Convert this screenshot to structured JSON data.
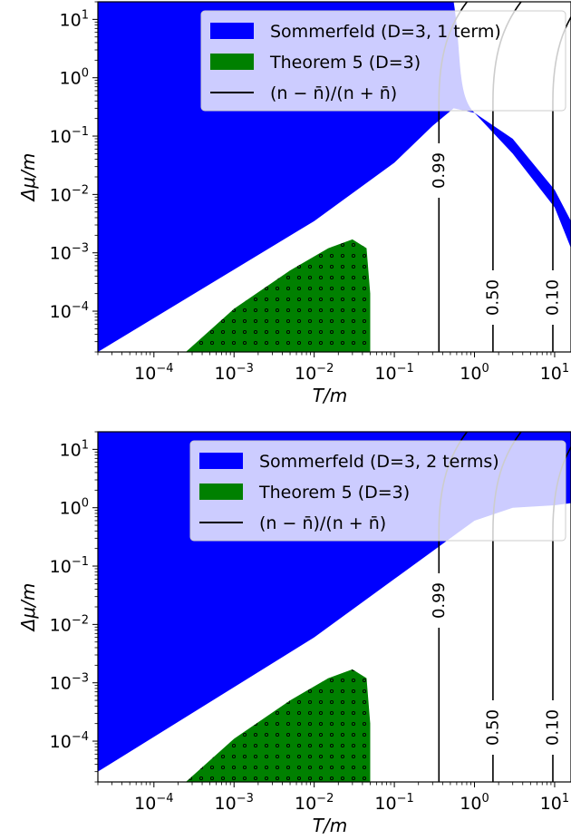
{
  "colors": {
    "sommerfeld": "#0000ff",
    "theorem": "#008000",
    "contour": "#000000",
    "legend_bg": "#ffffff"
  },
  "chart_data": [
    {
      "type": "area",
      "xscale": "log",
      "yscale": "log",
      "xlim": [
        2e-05,
        16
      ],
      "ylim": [
        2e-05,
        20
      ],
      "xlabel": "T/m",
      "ylabel": "Δμ/m",
      "x_tick_labels": [
        "10^-4",
        "10^-3",
        "10^-2",
        "10^-1",
        "10^0",
        "10^1"
      ],
      "y_tick_labels": [
        "10^-4",
        "10^-3",
        "10^-2",
        "10^-1",
        "10^0",
        "10^1"
      ],
      "legend": {
        "placement": "upper right",
        "entries": [
          {
            "label": "Sommerfeld (D=3, 1 term)",
            "kind": "patch",
            "color": "#0000ff"
          },
          {
            "label": "Theorem 5 (D=3)",
            "kind": "patch",
            "color": "#008000"
          },
          {
            "label": "(n − n̄)/(n + n̄)",
            "kind": "line",
            "color": "#000000"
          }
        ]
      },
      "sommerfeld_region": {
        "description": "filled above boundary",
        "boundary": [
          [
            2e-05,
            2e-05
          ],
          [
            0.01,
            0.0035
          ],
          [
            0.1,
            0.035
          ],
          [
            0.3,
            0.15
          ],
          [
            0.55,
            0.3
          ],
          [
            1.0,
            0.25
          ],
          [
            3.0,
            0.05
          ],
          [
            10.0,
            0.006
          ],
          [
            16.0,
            0.0012
          ]
        ],
        "upper_branch": [
          [
            1.0,
            0.25
          ],
          [
            3.0,
            0.09
          ],
          [
            10.0,
            0.012
          ],
          [
            16.0,
            0.0035
          ]
        ],
        "note": "white region above crossover inside blue on the right"
      },
      "theorem5_region": {
        "boundary": [
          [
            0.00025,
            2e-05
          ],
          [
            0.001,
            0.00011
          ],
          [
            0.005,
            0.0005
          ],
          [
            0.015,
            0.0012
          ],
          [
            0.03,
            0.0017
          ],
          [
            0.045,
            0.0012
          ],
          [
            0.05,
            0.0002
          ],
          [
            0.05,
            2e-05
          ]
        ]
      },
      "contours": [
        {
          "label": "0.99",
          "x": 0.36
        },
        {
          "label": "0.50",
          "x": 1.7
        },
        {
          "label": "0.10",
          "x": 9.5
        }
      ]
    },
    {
      "type": "area",
      "xscale": "log",
      "yscale": "log",
      "xlim": [
        2e-05,
        16
      ],
      "ylim": [
        2e-05,
        20
      ],
      "xlabel": "T/m",
      "ylabel": "Δμ/m",
      "x_tick_labels": [
        "10^-4",
        "10^-3",
        "10^-2",
        "10^-1",
        "10^0",
        "10^1"
      ],
      "y_tick_labels": [
        "10^-4",
        "10^-3",
        "10^-2",
        "10^-1",
        "10^0",
        "10^1"
      ],
      "legend": {
        "placement": "upper right",
        "entries": [
          {
            "label": "Sommerfeld (D=3, 2 terms)",
            "kind": "patch",
            "color": "#0000ff"
          },
          {
            "label": "Theorem 5 (D=3)",
            "kind": "patch",
            "color": "#008000"
          },
          {
            "label": "(n − n̄)/(n + n̄)",
            "kind": "line",
            "color": "#000000"
          }
        ]
      },
      "sommerfeld_region": {
        "description": "filled above boundary",
        "boundary": [
          [
            2e-05,
            3e-05
          ],
          [
            0.01,
            0.006
          ],
          [
            0.1,
            0.06
          ],
          [
            0.3,
            0.18
          ],
          [
            1.0,
            0.6
          ],
          [
            3.0,
            1.0
          ],
          [
            10.0,
            1.1
          ],
          [
            16.0,
            1.2
          ]
        ]
      },
      "theorem5_region": {
        "boundary": [
          [
            0.00025,
            2e-05
          ],
          [
            0.001,
            0.00011
          ],
          [
            0.005,
            0.0005
          ],
          [
            0.015,
            0.0012
          ],
          [
            0.03,
            0.0017
          ],
          [
            0.045,
            0.0012
          ],
          [
            0.05,
            0.0002
          ],
          [
            0.05,
            2e-05
          ]
        ]
      },
      "contours": [
        {
          "label": "0.99",
          "x": 0.36
        },
        {
          "label": "0.50",
          "x": 1.7
        },
        {
          "label": "0.10",
          "x": 9.5
        }
      ]
    }
  ]
}
